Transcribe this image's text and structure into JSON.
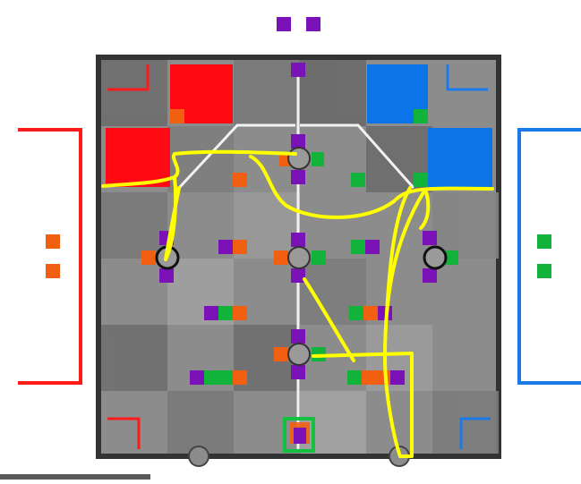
{
  "colors": {
    "red": "#ff0a0a",
    "blue": "#0a74e8",
    "orange": "#f06010",
    "green": "#12b33a",
    "purple": "#7a12b8",
    "yellow": "#ffff00",
    "field": "#8a8a8a",
    "wall": "#444444"
  },
  "field": {
    "description_icon": "field-diagram",
    "zones": [
      "red-home-zone",
      "red-home-zone",
      "blue-home-zone",
      "blue-home-zone"
    ],
    "robots": [
      "robot-left",
      "robot-right"
    ],
    "hubs": [
      "hub-top",
      "hub-center",
      "hub-bottom",
      "hub-left",
      "hub-right"
    ]
  },
  "annotation": {
    "type": "freehand-path",
    "color": "#ffff00"
  }
}
